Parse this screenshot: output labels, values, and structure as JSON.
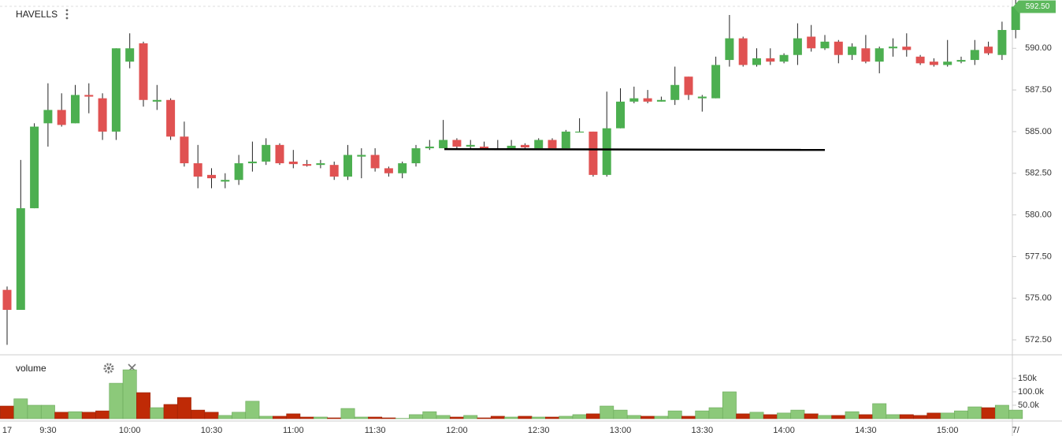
{
  "chart_data": {
    "type": "candlestick",
    "title": "HAVELLS",
    "categories": [
      "17",
      null,
      null,
      "9:30",
      null,
      null,
      null,
      null,
      null,
      "10:00",
      null,
      null,
      null,
      null,
      null,
      "10:30",
      null,
      null,
      null,
      null,
      null,
      "11:00",
      null,
      null,
      null,
      null,
      null,
      "11:30",
      null,
      null,
      null,
      null,
      null,
      "12:00",
      null,
      null,
      null,
      null,
      null,
      "12:30",
      null,
      null,
      null,
      null,
      null,
      "13:00",
      null,
      null,
      null,
      null,
      null,
      "13:30",
      null,
      null,
      null,
      null,
      null,
      "14:00",
      null,
      null,
      null,
      null,
      null,
      "14:30",
      null,
      null,
      null,
      null,
      null,
      "15:00",
      null,
      null,
      null,
      null,
      "7/"
    ],
    "open": [
      575.5,
      574.3,
      580.4,
      585.5,
      586.3,
      585.5,
      587.2,
      587.0,
      585.0,
      589.2,
      590.3,
      586.8,
      586.9,
      584.7,
      583.1,
      582.4,
      582.0,
      582.1,
      583.1,
      583.2,
      584.2,
      583.2,
      583.05,
      583.0,
      583.0,
      582.3,
      583.5,
      583.6,
      582.8,
      582.5,
      583.1,
      584.0,
      584.0,
      584.5,
      584.1,
      584.1,
      584.0,
      584.0,
      584.2,
      584.0,
      584.5,
      584.0,
      585.0,
      585.0,
      582.4,
      585.2,
      586.8,
      587.0,
      586.8,
      586.9,
      588.3,
      587.0,
      587.0,
      589.3,
      590.6,
      589.0,
      589.4,
      589.2,
      589.6,
      590.7,
      590.0,
      590.4,
      589.6,
      590.0,
      589.2,
      590.0,
      590.1,
      589.5,
      589.2,
      589.0,
      589.2,
      589.3,
      590.1,
      589.6,
      591.1
    ],
    "high": [
      575.7,
      583.3,
      585.5,
      587.9,
      587.3,
      587.8,
      587.9,
      587.3,
      590.0,
      590.9,
      590.4,
      587.8,
      587.0,
      585.6,
      584.2,
      582.8,
      582.5,
      583.6,
      584.4,
      584.6,
      584.3,
      583.9,
      583.3,
      583.3,
      583.2,
      584.2,
      584.0,
      584.0,
      582.9,
      583.2,
      584.2,
      584.5,
      585.7,
      584.6,
      584.5,
      584.4,
      584.5,
      584.5,
      584.3,
      584.6,
      584.6,
      585.1,
      585.8,
      585.0,
      587.4,
      587.6,
      587.7,
      587.5,
      587.1,
      588.9,
      588.3,
      587.2,
      589.5,
      592.0,
      590.7,
      590.0,
      590.0,
      589.7,
      591.5,
      591.4,
      590.8,
      590.5,
      590.3,
      590.8,
      590.1,
      590.6,
      590.9,
      589.6,
      589.4,
      590.5,
      589.5,
      590.5,
      590.4,
      591.6,
      592.9
    ],
    "low": [
      572.2,
      574.3,
      580.4,
      584.1,
      585.3,
      585.5,
      586.1,
      584.5,
      584.5,
      588.8,
      586.5,
      586.3,
      584.5,
      582.9,
      581.6,
      581.6,
      581.6,
      581.8,
      582.6,
      583.0,
      583.0,
      582.8,
      582.9,
      582.8,
      582.1,
      582.1,
      582.2,
      582.6,
      582.3,
      582.2,
      582.9,
      583.9,
      584.0,
      584.0,
      584.0,
      583.9,
      583.9,
      583.9,
      584.0,
      584.0,
      584.0,
      584.0,
      585.0,
      582.3,
      582.3,
      585.2,
      586.7,
      586.7,
      586.8,
      586.6,
      586.9,
      586.2,
      587.0,
      588.9,
      588.9,
      588.9,
      589.0,
      589.1,
      589.0,
      589.8,
      589.9,
      589.1,
      589.3,
      589.1,
      588.5,
      589.5,
      589.5,
      589.0,
      588.9,
      588.9,
      589.1,
      589.0,
      589.6,
      589.3,
      590.6
    ],
    "close": [
      574.3,
      580.4,
      585.3,
      586.3,
      585.4,
      587.2,
      587.1,
      585.0,
      590.0,
      590.0,
      586.9,
      586.9,
      584.7,
      583.1,
      582.3,
      582.2,
      582.1,
      583.1,
      583.2,
      584.2,
      583.1,
      583.05,
      582.95,
      583.1,
      582.3,
      583.6,
      583.6,
      582.8,
      582.5,
      583.1,
      584.0,
      584.1,
      584.5,
      584.1,
      584.2,
      584.0,
      583.95,
      584.15,
      584.05,
      584.5,
      584.0,
      585.0,
      585.0,
      582.4,
      585.2,
      586.8,
      587.0,
      586.8,
      586.9,
      587.8,
      587.2,
      587.1,
      589.0,
      590.6,
      589.0,
      589.4,
      589.2,
      589.6,
      590.6,
      590.0,
      590.4,
      589.6,
      590.1,
      589.2,
      590.0,
      590.1,
      589.9,
      589.1,
      589.0,
      589.2,
      589.3,
      589.9,
      589.7,
      591.1,
      592.5
    ],
    "up_color": "#4caf50",
    "down_color": "#e05252",
    "ylim": [
      571.65,
      592.9
    ],
    "yticks": [
      {
        "value": 572.5,
        "label": "572.50"
      },
      {
        "value": 575,
        "label": "575.00"
      },
      {
        "value": 577.5,
        "label": "577.50"
      },
      {
        "value": 580,
        "label": "580.00"
      },
      {
        "value": 582.5,
        "label": "582.50"
      },
      {
        "value": 585,
        "label": "585.00"
      },
      {
        "value": 587.5,
        "label": "587.50"
      },
      {
        "value": 590,
        "label": "590.00"
      },
      {
        "value": 592.5,
        "label": "592.50"
      }
    ],
    "last_price": {
      "value": 592.5,
      "label": "592.50"
    },
    "trendline": [
      583.95,
      583.9
    ],
    "volume": {
      "name": "volume",
      "values": [
        47000,
        74000,
        50000,
        50000,
        24000,
        26000,
        24000,
        29000,
        132000,
        182000,
        97000,
        41000,
        53000,
        79000,
        32000,
        24000,
        12000,
        24000,
        65000,
        9000,
        9000,
        18000,
        6000,
        6000,
        3000,
        38000,
        6000,
        6000,
        3000,
        1000,
        15000,
        26000,
        12000,
        6000,
        12000,
        3000,
        9000,
        6000,
        9000,
        6000,
        6000,
        9000,
        15000,
        18000,
        47000,
        32000,
        12000,
        9000,
        9000,
        29000,
        9000,
        29000,
        41000,
        100000,
        18000,
        24000,
        15000,
        21000,
        32000,
        18000,
        12000,
        12000,
        26000,
        15000,
        56000,
        15000,
        15000,
        12000,
        21000,
        21000,
        29000,
        44000,
        41000,
        50000,
        32000
      ],
      "up_color": "#8cc97a",
      "down_color": "#bf2a06",
      "ylim": [
        0,
        238000
      ],
      "yticks": [
        {
          "value": 50000,
          "label": "50.0k"
        },
        {
          "value": 100000,
          "label": "100.0k"
        },
        {
          "value": 150000,
          "label": "150k"
        }
      ]
    }
  }
}
